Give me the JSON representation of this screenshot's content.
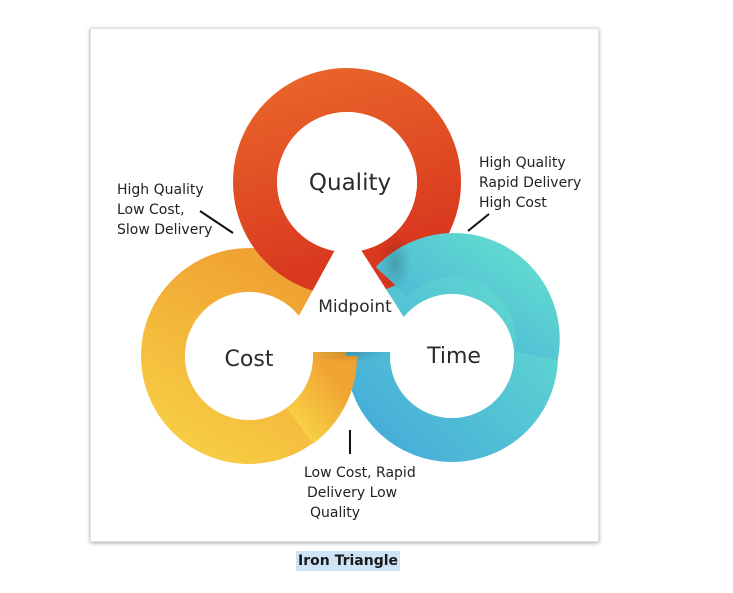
{
  "diagram": {
    "circles": {
      "quality": {
        "label": "Quality",
        "color_start": "#e8642a",
        "color_end": "#d9381e"
      },
      "cost": {
        "label": "Cost",
        "color_start": "#f6c843",
        "color_end": "#f0a431"
      },
      "time": {
        "label": "Time",
        "color_start": "#4bb6dc",
        "color_end": "#5fd9cf"
      }
    },
    "center_label": "Midpoint",
    "annotations": {
      "quality_cost": [
        "High Quality",
        "Low Cost,",
        "Slow Delivery"
      ],
      "quality_time": [
        "High Quality",
        "Rapid Delivery",
        "High Cost"
      ],
      "cost_time": [
        "Low Cost,  Rapid",
        "Delivery Low",
        "Quality"
      ]
    }
  },
  "caption": "Iron Triangle"
}
